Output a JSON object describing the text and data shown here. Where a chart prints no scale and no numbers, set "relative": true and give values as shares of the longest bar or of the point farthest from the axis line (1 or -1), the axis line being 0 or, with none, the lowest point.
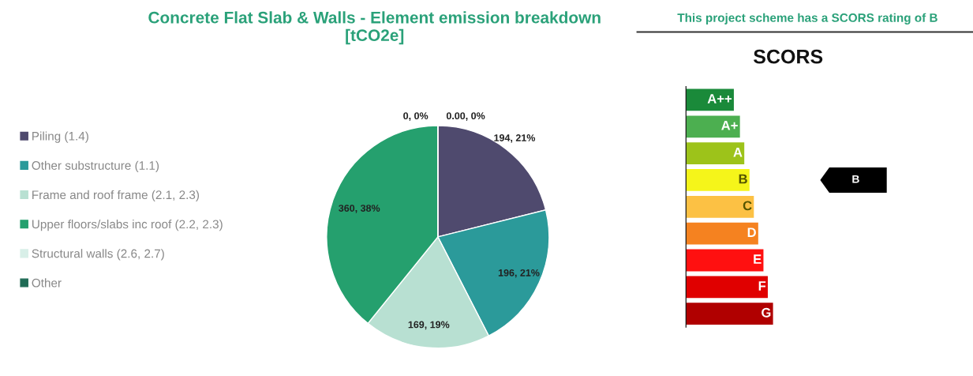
{
  "chart_data": [
    {
      "type": "pie",
      "title": "Concrete Flat Slab & Walls - Element emission breakdown\n[tCO2e]",
      "categories": [
        "Piling (1.4)",
        "Other substructure (1.1)",
        "Frame and roof frame (2.1, 2.3)",
        "Upper floors/slabs inc roof (2.2, 2.3)",
        "Structural walls (2.6, 2.7)",
        "Other"
      ],
      "values": [
        194,
        196,
        169,
        360,
        0,
        0
      ],
      "colors": [
        "#4f4a6e",
        "#2b9a9a",
        "#b8e0d2",
        "#25a06e",
        "#d8efe8",
        "#1f6b55"
      ],
      "value_labels": [
        "194, 21%",
        "196, 21%",
        "169, 19%",
        "360, 38%",
        "0, 0%",
        "0.00, 0%"
      ],
      "legend": "left"
    },
    {
      "type": "bar",
      "orientation": "horizontal",
      "relative": true,
      "title": "This project scheme has a SCORS rating of B",
      "subtitle": "SCORS",
      "categories": [
        "A++",
        "A+",
        "A",
        "B",
        "C",
        "D",
        "E",
        "F",
        "G"
      ],
      "values": [
        0.55,
        0.62,
        0.67,
        0.73,
        0.78,
        0.83,
        0.89,
        0.94,
        1
      ],
      "colors": [
        "#1a8a3a",
        "#4caf50",
        "#9dc31a",
        "#f5f51a",
        "#fcc144",
        "#f58220",
        "#ff1010",
        "#e00000",
        "#b00000"
      ],
      "annotations": [
        "B"
      ]
    }
  ]
}
